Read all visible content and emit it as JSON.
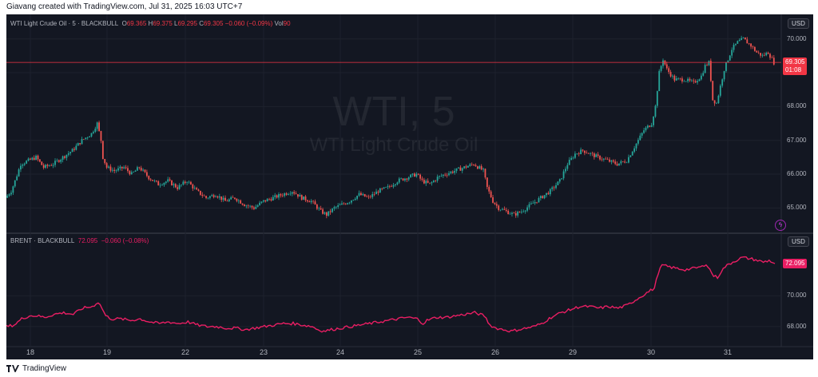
{
  "header": {
    "text": "Giavang created with TradingView.com, Jul 31, 2025 16:03 UTC+7"
  },
  "footer": {
    "brand": "TradingView"
  },
  "watermark": {
    "symbol": "WTI, 5",
    "name": "WTI Light Crude Oil"
  },
  "colors": {
    "background": "#131722",
    "up": "#26a69a",
    "down": "#ef5350",
    "brent": "#e91e63",
    "last_price": "#f23645"
  },
  "chart_data": [
    {
      "type": "candlestick",
      "legend": {
        "symbol": "WTI Light Crude Oil · 5 · BLACKBULL",
        "o_label": "O",
        "o": "69.365",
        "h_label": "H",
        "h": "69.375",
        "l_label": "L",
        "l": "69.295",
        "c_label": "C",
        "c": "69.305",
        "change": "−0.060 (−0.09%)",
        "vol_label": "Vol",
        "vol": "90"
      },
      "currency": "USD",
      "y_ticks": [
        "70.000",
        "69.000",
        "68.000",
        "67.000",
        "66.000",
        "65.000"
      ],
      "ylim": [
        64.3,
        70.3
      ],
      "last_price": "69.305",
      "countdown": "01:08",
      "path": [
        [
          0,
          65.3
        ],
        [
          3,
          65.5
        ],
        [
          5,
          65.8
        ],
        [
          8,
          66.3
        ],
        [
          12,
          66.4
        ],
        [
          16,
          66.5
        ],
        [
          20,
          66.2
        ],
        [
          25,
          66.3
        ],
        [
          30,
          66.5
        ],
        [
          35,
          66.7
        ],
        [
          40,
          67.0
        ],
        [
          45,
          67.2
        ],
        [
          48,
          67.5
        ],
        [
          50,
          67.0
        ],
        [
          51,
          66.5
        ],
        [
          53,
          66.2
        ],
        [
          57,
          66.1
        ],
        [
          62,
          66.2
        ],
        [
          66,
          66.0
        ],
        [
          70,
          66.2
        ],
        [
          75,
          65.9
        ],
        [
          80,
          65.7
        ],
        [
          85,
          65.8
        ],
        [
          90,
          65.6
        ],
        [
          95,
          65.8
        ],
        [
          100,
          65.5
        ],
        [
          105,
          65.3
        ],
        [
          110,
          65.4
        ],
        [
          115,
          65.2
        ],
        [
          120,
          65.3
        ],
        [
          125,
          65.1
        ],
        [
          130,
          65.0
        ],
        [
          135,
          65.2
        ],
        [
          140,
          65.3
        ],
        [
          145,
          65.4
        ],
        [
          150,
          65.5
        ],
        [
          155,
          65.3
        ],
        [
          160,
          65.2
        ],
        [
          165,
          64.9
        ],
        [
          168,
          64.8
        ],
        [
          172,
          65.0
        ],
        [
          176,
          65.1
        ],
        [
          180,
          65.2
        ],
        [
          185,
          65.4
        ],
        [
          190,
          65.3
        ],
        [
          195,
          65.5
        ],
        [
          200,
          65.6
        ],
        [
          205,
          65.8
        ],
        [
          210,
          65.9
        ],
        [
          215,
          66.0
        ],
        [
          218,
          65.8
        ],
        [
          222,
          65.7
        ],
        [
          226,
          65.9
        ],
        [
          230,
          66.0
        ],
        [
          235,
          66.1
        ],
        [
          240,
          66.2
        ],
        [
          245,
          66.3
        ],
        [
          250,
          66.1
        ],
        [
          252,
          65.6
        ],
        [
          255,
          65.2
        ],
        [
          258,
          65.0
        ],
        [
          262,
          64.9
        ],
        [
          266,
          64.8
        ],
        [
          270,
          64.9
        ],
        [
          275,
          65.1
        ],
        [
          280,
          65.3
        ],
        [
          285,
          65.5
        ],
        [
          290,
          65.8
        ],
        [
          294,
          66.3
        ],
        [
          298,
          66.6
        ],
        [
          302,
          66.7
        ],
        [
          306,
          66.6
        ],
        [
          310,
          66.5
        ],
        [
          315,
          66.4
        ],
        [
          320,
          66.3
        ],
        [
          325,
          66.4
        ],
        [
          330,
          66.9
        ],
        [
          334,
          67.3
        ],
        [
          338,
          67.5
        ],
        [
          340,
          68.0
        ],
        [
          342,
          69.0
        ],
        [
          344,
          69.4
        ],
        [
          346,
          69.1
        ],
        [
          350,
          68.8
        ],
        [
          355,
          68.8
        ],
        [
          360,
          68.7
        ],
        [
          364,
          68.9
        ],
        [
          366,
          69.2
        ],
        [
          368,
          69.3
        ],
        [
          369,
          68.8
        ],
        [
          370,
          68.2
        ],
        [
          372,
          68.1
        ],
        [
          374,
          68.6
        ],
        [
          376,
          69.1
        ],
        [
          378,
          69.4
        ],
        [
          380,
          69.7
        ],
        [
          383,
          69.9
        ],
        [
          386,
          70.0
        ],
        [
          390,
          69.8
        ],
        [
          393,
          69.6
        ],
        [
          396,
          69.5
        ],
        [
          399,
          69.6
        ],
        [
          402,
          69.3
        ]
      ],
      "path_x_max": 402
    },
    {
      "type": "line",
      "legend": {
        "symbol": "BRENT · BLACKBULL",
        "value": "72.095",
        "change": "−0.060 (−0.08%)"
      },
      "currency": "USD",
      "y_ticks": [
        "70.000",
        "68.000"
      ],
      "ylim": [
        66.9,
        73.4
      ],
      "last_price": "72.095",
      "path": [
        [
          0,
          68.0
        ],
        [
          4,
          68.1
        ],
        [
          8,
          68.5
        ],
        [
          12,
          68.7
        ],
        [
          16,
          68.7
        ],
        [
          20,
          68.6
        ],
        [
          25,
          68.8
        ],
        [
          30,
          68.9
        ],
        [
          35,
          68.8
        ],
        [
          40,
          69.2
        ],
        [
          45,
          69.3
        ],
        [
          48,
          69.6
        ],
        [
          50,
          69.2
        ],
        [
          52,
          68.7
        ],
        [
          55,
          68.5
        ],
        [
          60,
          68.5
        ],
        [
          65,
          68.4
        ],
        [
          70,
          68.5
        ],
        [
          75,
          68.3
        ],
        [
          80,
          68.2
        ],
        [
          85,
          68.3
        ],
        [
          90,
          68.2
        ],
        [
          95,
          68.3
        ],
        [
          100,
          68.1
        ],
        [
          105,
          68.0
        ],
        [
          110,
          68.0
        ],
        [
          115,
          67.9
        ],
        [
          120,
          67.9
        ],
        [
          125,
          67.8
        ],
        [
          130,
          67.9
        ],
        [
          135,
          68.0
        ],
        [
          140,
          68.1
        ],
        [
          145,
          68.2
        ],
        [
          150,
          68.2
        ],
        [
          155,
          68.1
        ],
        [
          160,
          68.0
        ],
        [
          163,
          67.8
        ],
        [
          166,
          67.7
        ],
        [
          170,
          67.8
        ],
        [
          175,
          67.9
        ],
        [
          180,
          68.0
        ],
        [
          185,
          68.1
        ],
        [
          190,
          68.2
        ],
        [
          195,
          68.3
        ],
        [
          200,
          68.4
        ],
        [
          205,
          68.5
        ],
        [
          210,
          68.6
        ],
        [
          215,
          68.5
        ],
        [
          218,
          68.2
        ],
        [
          220,
          68.4
        ],
        [
          225,
          68.6
        ],
        [
          230,
          68.6
        ],
        [
          235,
          68.7
        ],
        [
          240,
          68.8
        ],
        [
          245,
          68.9
        ],
        [
          250,
          68.7
        ],
        [
          253,
          68.1
        ],
        [
          256,
          67.9
        ],
        [
          260,
          67.8
        ],
        [
          264,
          67.7
        ],
        [
          268,
          67.8
        ],
        [
          272,
          67.9
        ],
        [
          276,
          68.0
        ],
        [
          280,
          68.2
        ],
        [
          285,
          68.6
        ],
        [
          290,
          68.9
        ],
        [
          295,
          69.1
        ],
        [
          300,
          69.3
        ],
        [
          305,
          69.3
        ],
        [
          310,
          69.2
        ],
        [
          315,
          69.3
        ],
        [
          320,
          69.2
        ],
        [
          325,
          69.4
        ],
        [
          330,
          69.8
        ],
        [
          335,
          70.2
        ],
        [
          339,
          70.5
        ],
        [
          341,
          71.5
        ],
        [
          343,
          72.0
        ],
        [
          346,
          71.9
        ],
        [
          350,
          71.8
        ],
        [
          355,
          71.7
        ],
        [
          360,
          71.8
        ],
        [
          364,
          71.9
        ],
        [
          366,
          72.1
        ],
        [
          368,
          71.7
        ],
        [
          370,
          71.3
        ],
        [
          372,
          71.2
        ],
        [
          374,
          71.6
        ],
        [
          376,
          71.9
        ],
        [
          380,
          72.2
        ],
        [
          385,
          72.5
        ],
        [
          390,
          72.4
        ],
        [
          393,
          72.3
        ],
        [
          396,
          72.2
        ],
        [
          399,
          72.3
        ],
        [
          402,
          72.1
        ]
      ],
      "path_x_max": 402
    }
  ],
  "x_ticks": [
    "18",
    "19",
    "22",
    "23",
    "24",
    "25",
    "26",
    "29",
    "30",
    "31"
  ]
}
